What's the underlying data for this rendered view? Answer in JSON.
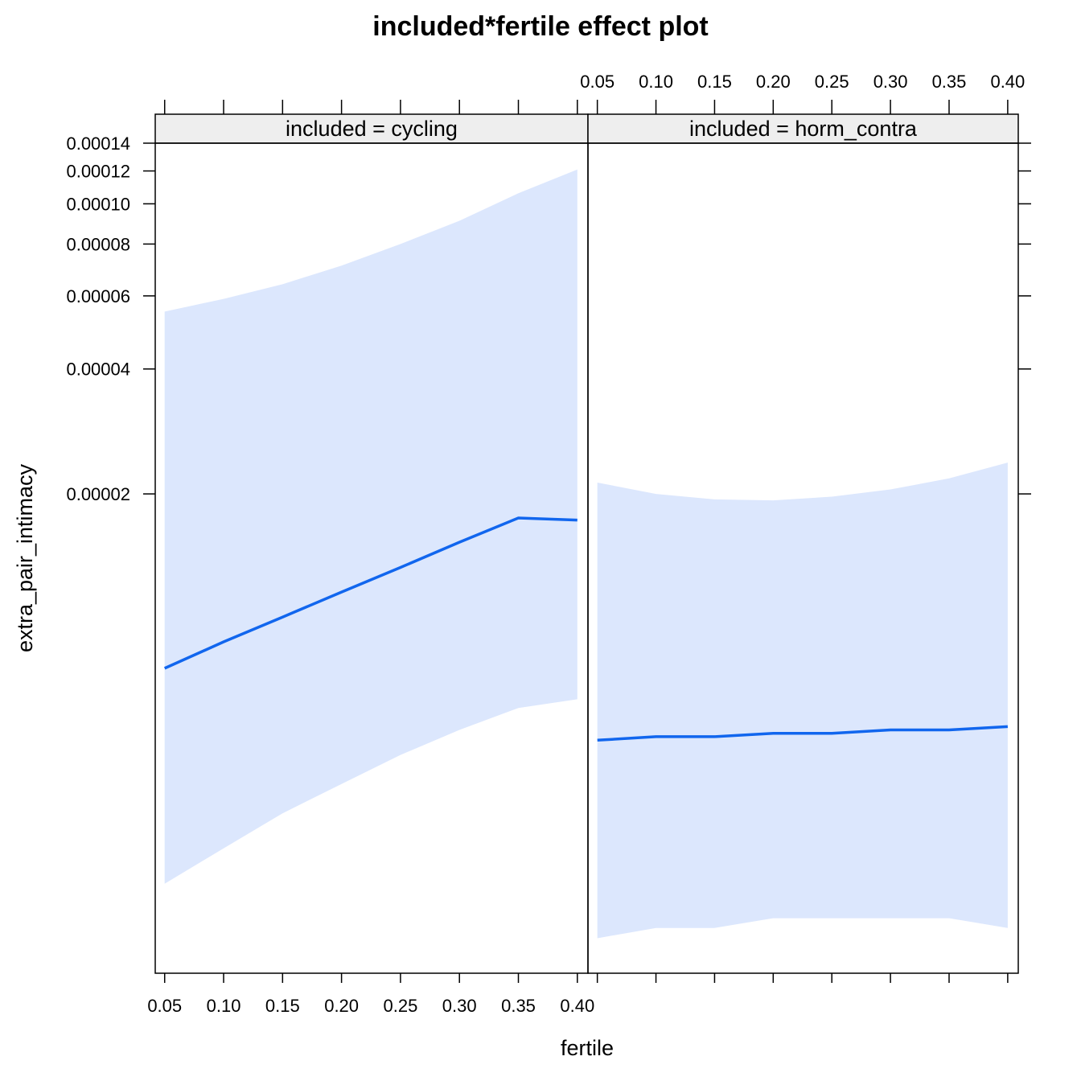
{
  "chart_data": {
    "type": "line",
    "title": "included*fertile effect plot",
    "xlabel": "fertile",
    "ylabel": "extra_pair_intimacy",
    "x_ticks": [
      "0.05",
      "0.10",
      "0.15",
      "0.20",
      "0.25",
      "0.30",
      "0.35",
      "0.40"
    ],
    "y_ticks": [
      "0.00002",
      "0.00004",
      "0.00006",
      "0.00008",
      "0.00010",
      "0.00012",
      "0.00014"
    ],
    "y_scale": "log",
    "xlim": [
      0.042,
      0.409
    ],
    "ylim": [
      1.4e-06,
      0.00014
    ],
    "x": [
      0.05,
      0.1,
      0.15,
      0.2,
      0.25,
      0.3,
      0.35,
      0.4
    ],
    "band_color": "#dce7fd",
    "line_color": "#1166ee",
    "panels": [
      {
        "strip": "included = cycling",
        "fit": [
          7.6e-06,
          8.8e-06,
          1.01e-05,
          1.16e-05,
          1.33e-05,
          1.53e-05,
          1.75e-05,
          1.73e-05
        ],
        "lower": [
          2.3e-06,
          2.8e-06,
          3.4e-06,
          4e-06,
          4.7e-06,
          5.4e-06,
          6.1e-06,
          6.4e-06
        ],
        "upper": [
          5.5e-05,
          5.9e-05,
          6.4e-05,
          7.1e-05,
          8e-05,
          9.1e-05,
          0.000106,
          0.000121
        ]
      },
      {
        "strip": "included = horm_contra",
        "fit": [
          5.1e-06,
          5.2e-06,
          5.2e-06,
          5.3e-06,
          5.3e-06,
          5.4e-06,
          5.4e-06,
          5.5e-06
        ],
        "lower": [
          1.7e-06,
          1.8e-06,
          1.8e-06,
          1.9e-06,
          1.9e-06,
          1.9e-06,
          1.9e-06,
          1.8e-06
        ],
        "upper": [
          2.13e-05,
          2e-05,
          1.94e-05,
          1.93e-05,
          1.97e-05,
          2.05e-05,
          2.18e-05,
          2.38e-05
        ]
      }
    ],
    "grid": false,
    "legend": "none"
  }
}
